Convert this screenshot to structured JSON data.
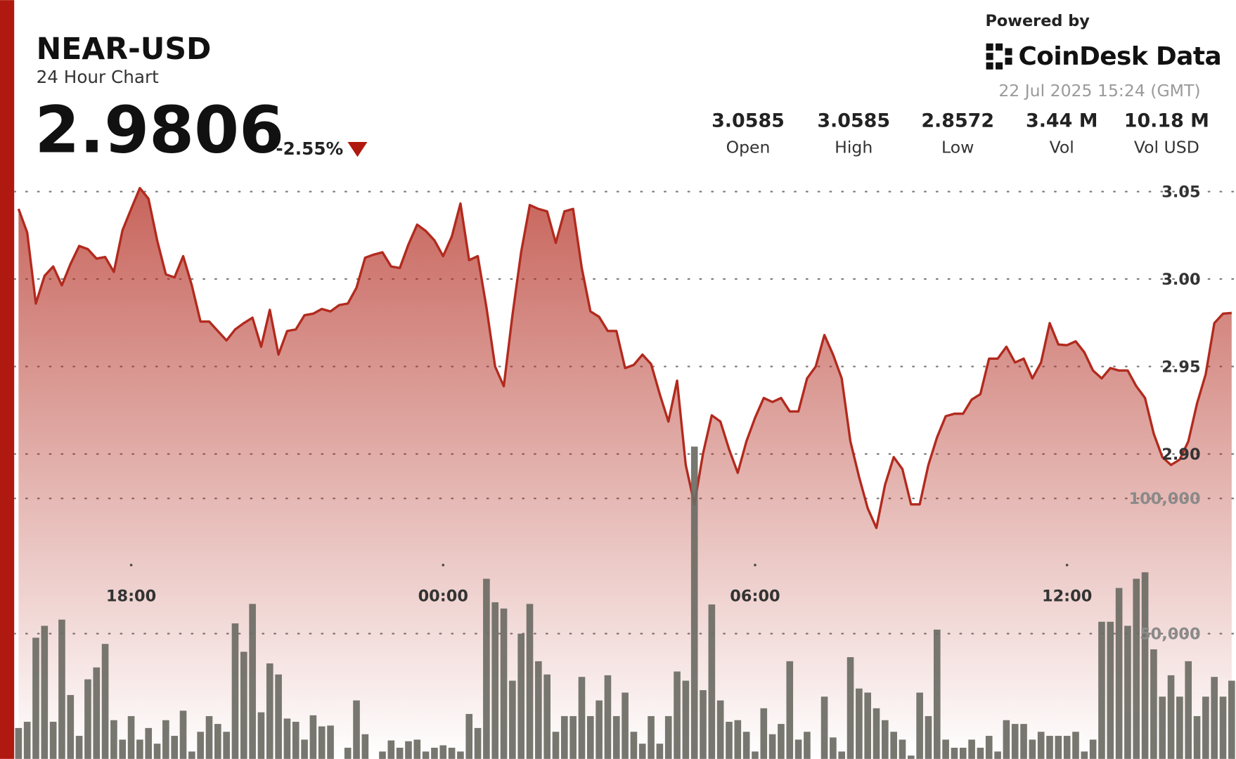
{
  "header": {
    "symbol": "NEAR-USD",
    "subtitle": "24 Hour Chart",
    "price": "2.9806",
    "change": "-2.55%",
    "powered_by": "Powered by",
    "brand": "CoinDesk Data",
    "timestamp": "22 Jul 2025 15:24 (GMT)"
  },
  "stats": [
    {
      "value": "3.0585",
      "label": "Open"
    },
    {
      "value": "3.0585",
      "label": "High"
    },
    {
      "value": "2.8572",
      "label": "Low"
    },
    {
      "value": "3.44 M",
      "label": "Vol"
    },
    {
      "value": "10.18 M",
      "label": "Vol USD"
    }
  ],
  "chart_data": {
    "type": "line",
    "categories": [
      null,
      null,
      null,
      null,
      null,
      null,
      null,
      null,
      null,
      null,
      null,
      null,
      null,
      "18:00",
      null,
      null,
      null,
      null,
      null,
      null,
      null,
      null,
      null,
      null,
      null,
      null,
      null,
      null,
      null,
      null,
      null,
      null,
      null,
      null,
      null,
      null,
      null,
      null,
      null,
      null,
      null,
      null,
      null,
      null,
      null,
      null,
      null,
      null,
      null,
      "00:00",
      null,
      null,
      null,
      null,
      null,
      null,
      null,
      null,
      null,
      null,
      null,
      null,
      null,
      null,
      null,
      null,
      null,
      null,
      null,
      null,
      null,
      null,
      null,
      null,
      null,
      null,
      null,
      null,
      null,
      null,
      null,
      null,
      null,
      null,
      null,
      "06:00",
      null,
      null,
      null,
      null,
      null,
      null,
      null,
      null,
      null,
      null,
      null,
      null,
      null,
      null,
      null,
      null,
      null,
      null,
      null,
      null,
      null,
      null,
      null,
      null,
      null,
      null,
      null,
      null,
      null,
      null,
      null,
      null,
      null,
      null,
      null,
      "12:00",
      null,
      null,
      null,
      null,
      null,
      null,
      null,
      null,
      null,
      null,
      null,
      null,
      null,
      null,
      null,
      null,
      null,
      null,
      null
    ],
    "series": [
      {
        "color": "#b22a1e",
        "values": [
          3.0401,
          3.0266,
          2.986,
          3.0018,
          3.0072,
          2.9964,
          3.0086,
          3.0189,
          3.0171,
          3.0117,
          3.0126,
          3.0041,
          3.0279,
          3.0401,
          3.052,
          3.0459,
          3.0221,
          3.0027,
          3.0009,
          3.0131,
          2.9964,
          2.9757,
          2.9757,
          2.9703,
          2.9649,
          2.9712,
          2.9748,
          2.9779,
          2.9613,
          2.9824,
          2.9568,
          2.9703,
          2.9712,
          2.9793,
          2.9802,
          2.9829,
          2.9815,
          2.9851,
          2.986,
          2.995,
          3.0122,
          3.014,
          3.0153,
          3.0072,
          3.0063,
          3.0198,
          3.0311,
          3.0275,
          3.0221,
          3.0131,
          3.0243,
          3.0432,
          3.0108,
          3.0131,
          2.9838,
          2.95,
          2.9387,
          2.9793,
          3.0153,
          3.0423,
          3.0401,
          3.0387,
          3.0207,
          3.0387,
          3.0401,
          3.0063,
          2.9815,
          2.9784,
          2.9703,
          2.9703,
          2.9491,
          2.9509,
          2.9568,
          2.9514,
          2.9342,
          2.9185,
          2.9419,
          2.8937,
          2.8712,
          2.9004,
          2.9221,
          2.9185,
          2.9027,
          2.8892,
          2.9072,
          2.9207,
          2.932,
          2.9297,
          2.932,
          2.9243,
          2.9243,
          2.9432,
          2.95,
          2.968,
          2.9568,
          2.9432,
          2.9072,
          2.8869,
          2.8689,
          2.8577,
          2.8824,
          2.8982,
          2.8914,
          2.8712,
          2.8712,
          2.8937,
          2.9095,
          2.9216,
          2.923,
          2.923,
          2.9311,
          2.9342,
          2.9545,
          2.9545,
          2.9613,
          2.9523,
          2.9545,
          2.9432,
          2.9523,
          2.9748,
          2.9626,
          2.9622,
          2.9644,
          2.9581,
          2.9477,
          2.9432,
          2.9491,
          2.9477,
          2.9477,
          2.9387,
          2.932,
          2.9117,
          2.8982,
          2.8937,
          2.8968,
          2.9072,
          2.9288,
          2.9455,
          2.9748,
          2.9802,
          2.9806
        ]
      },
      {
        "type": "bar",
        "axis": "y2",
        "color": "#6b6b64",
        "values": [
          15100,
          17400,
          48500,
          52900,
          17400,
          55200,
          27300,
          12200,
          33100,
          37500,
          46200,
          18000,
          10800,
          19500,
          10800,
          15100,
          9300,
          18000,
          12200,
          21500,
          6400,
          13700,
          19500,
          16600,
          13700,
          53800,
          43300,
          61000,
          20900,
          39000,
          34900,
          18600,
          17400,
          10800,
          19800,
          15700,
          16000,
          3500,
          7800,
          25300,
          12800,
          3500,
          6400,
          10500,
          7800,
          10200,
          10800,
          6400,
          7800,
          8700,
          7800,
          6400,
          20300,
          15100,
          70300,
          61600,
          59300,
          32600,
          50000,
          61000,
          39800,
          34900,
          13700,
          19500,
          19500,
          34000,
          19500,
          25300,
          34600,
          19500,
          28200,
          13700,
          9300,
          19500,
          9300,
          19500,
          36000,
          32600,
          119200,
          29100,
          60800,
          25300,
          17400,
          18000,
          13700,
          6400,
          22400,
          12800,
          16600,
          39800,
          10800,
          13700,
          3500,
          26700,
          11600,
          6400,
          41300,
          29700,
          28200,
          22400,
          18000,
          13700,
          10800,
          4900,
          28200,
          19500,
          51500,
          10800,
          7800,
          7800,
          10800,
          7800,
          12200,
          6400,
          18000,
          16600,
          16600,
          10800,
          13700,
          12200,
          12200,
          12200,
          13700,
          6400,
          10800,
          54400,
          54400,
          66900,
          52900,
          70300,
          72700,
          44200,
          26700,
          34600,
          26700,
          39800,
          19500,
          26700,
          34000,
          26700,
          32600
        ]
      }
    ],
    "ylim": [
      2.72,
      3.06
    ],
    "yticks": [
      {
        "value": 2.9,
        "label": "2.90"
      },
      2.95,
      {
        "value": 3,
        "label": "3.00"
      },
      3.05
    ],
    "y2lim": [
      0,
      220000
    ],
    "y2ticks": [
      {
        "value": 50000,
        "label": "50,000"
      },
      {
        "value": 100000,
        "label": "100,000"
      }
    ],
    "grid": true
  }
}
